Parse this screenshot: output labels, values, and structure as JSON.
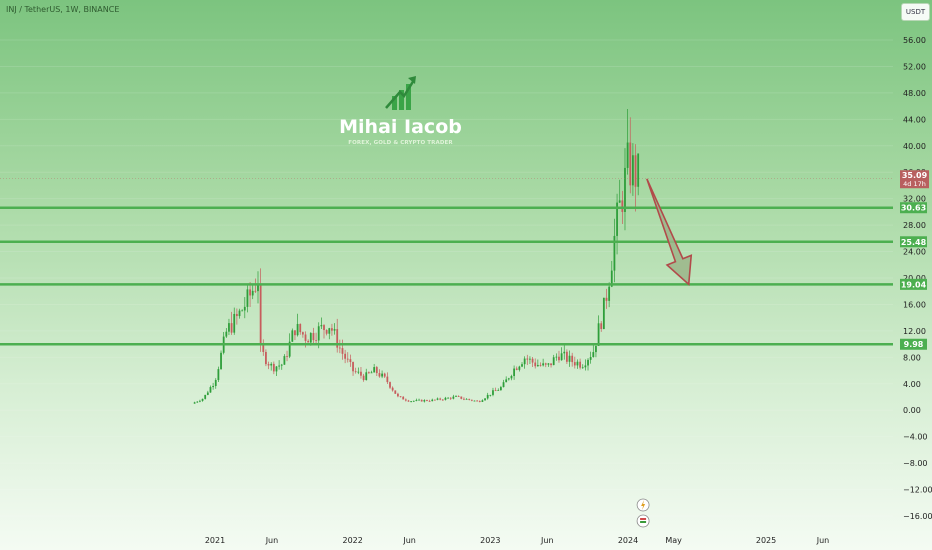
{
  "header": {
    "symbol_title": "INJ / TetherUS, 1W, BINANCE",
    "currency_button": "USDT"
  },
  "logo": {
    "name": "Mihai Iacob",
    "tagline": "FOREX, GOLD & CRYPTO TRADER"
  },
  "colors": {
    "up": "#2e9e3a",
    "down": "#c75c5c",
    "level_line": "#4caf50",
    "arrow_fill": "#9bb58a",
    "arrow_stroke": "#b24a4a",
    "price_badge": "#b85f5f"
  },
  "current_price": {
    "value": 35.09,
    "label": "35.09",
    "countdown": "4d 17h"
  },
  "chart_data": {
    "type": "candlestick",
    "title": "INJ / TetherUS, 1W, BINANCE",
    "ylim": [
      -18,
      60
    ],
    "y_ticks": [
      56,
      52,
      48,
      44,
      40,
      36,
      32,
      28,
      24,
      20,
      16,
      12,
      8,
      4,
      0,
      -4,
      -8,
      -12,
      -16
    ],
    "y_tick_labels": [
      "56.00",
      "52.00",
      "48.00",
      "44.00",
      "40.00",
      "36.00",
      "32.00",
      "28.00",
      "24.00",
      "20.00",
      "16.00",
      "12.00",
      "8.00",
      "4.00",
      "0.00",
      "−4.00",
      "−8.00",
      "−12.00",
      "−16.00"
    ],
    "x_ticks": [
      {
        "date": "2021-01",
        "label": "2021"
      },
      {
        "date": "2021-06",
        "label": "Jun"
      },
      {
        "date": "2022-01",
        "label": "2022"
      },
      {
        "date": "2022-06",
        "label": "Jun"
      },
      {
        "date": "2023-01",
        "label": "2023"
      },
      {
        "date": "2023-06",
        "label": "Jun"
      },
      {
        "date": "2024-01",
        "label": "2024"
      },
      {
        "date": "2024-05",
        "label": "May"
      },
      {
        "date": "2025-01",
        "label": "2025"
      },
      {
        "date": "2025-06",
        "label": "Jun"
      }
    ],
    "horizontal_levels": [
      {
        "value": 30.63,
        "label": "30.63"
      },
      {
        "value": 25.48,
        "label": "25.48"
      },
      {
        "value": 19.04,
        "label": "19.04"
      },
      {
        "value": 9.98,
        "label": "9.98"
      }
    ],
    "projection_arrow": {
      "from": {
        "date": "2024-02-20",
        "value": 35.0
      },
      "to": {
        "date": "2024-06-10",
        "value": 19.04
      }
    },
    "close_series_approx": [
      {
        "date": "2020-11",
        "value": 1.0
      },
      {
        "date": "2020-12",
        "value": 1.8
      },
      {
        "date": "2021-01",
        "value": 4.5
      },
      {
        "date": "2021-02",
        "value": 12.0
      },
      {
        "date": "2021-03",
        "value": 14.0
      },
      {
        "date": "2021-04",
        "value": 17.0
      },
      {
        "date": "2021-04-25",
        "value": 20.0
      },
      {
        "date": "2021-05",
        "value": 9.0
      },
      {
        "date": "2021-06",
        "value": 6.5
      },
      {
        "date": "2021-07",
        "value": 7.0
      },
      {
        "date": "2021-08",
        "value": 12.5
      },
      {
        "date": "2021-09",
        "value": 11.0
      },
      {
        "date": "2021-10",
        "value": 12.0
      },
      {
        "date": "2021-11",
        "value": 13.0
      },
      {
        "date": "2021-12",
        "value": 9.0
      },
      {
        "date": "2022-01",
        "value": 6.0
      },
      {
        "date": "2022-02",
        "value": 5.0
      },
      {
        "date": "2022-03",
        "value": 6.0
      },
      {
        "date": "2022-04",
        "value": 4.5
      },
      {
        "date": "2022-05",
        "value": 2.0
      },
      {
        "date": "2022-06",
        "value": 1.4
      },
      {
        "date": "2022-08",
        "value": 1.5
      },
      {
        "date": "2022-10",
        "value": 2.0
      },
      {
        "date": "2022-12",
        "value": 1.3
      },
      {
        "date": "2023-01",
        "value": 2.5
      },
      {
        "date": "2023-02",
        "value": 3.5
      },
      {
        "date": "2023-03",
        "value": 6.0
      },
      {
        "date": "2023-04",
        "value": 8.0
      },
      {
        "date": "2023-05",
        "value": 7.0
      },
      {
        "date": "2023-06",
        "value": 6.5
      },
      {
        "date": "2023-07",
        "value": 8.5
      },
      {
        "date": "2023-08",
        "value": 7.5
      },
      {
        "date": "2023-09",
        "value": 7.0
      },
      {
        "date": "2023-10",
        "value": 9.0
      },
      {
        "date": "2023-11",
        "value": 16.0
      },
      {
        "date": "2023-12",
        "value": 28.0
      },
      {
        "date": "2024-01",
        "value": 37.0
      },
      {
        "date": "2024-02",
        "value": 35.09
      }
    ]
  }
}
